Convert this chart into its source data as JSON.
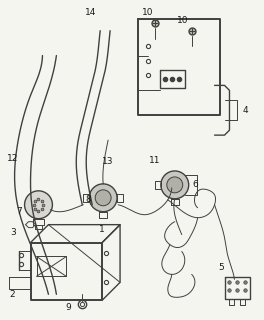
{
  "background_color": "#f5f5f0",
  "line_color": "#404040",
  "label_color": "#1a1a1a",
  "fig_width": 2.64,
  "fig_height": 3.2,
  "dpi": 100
}
